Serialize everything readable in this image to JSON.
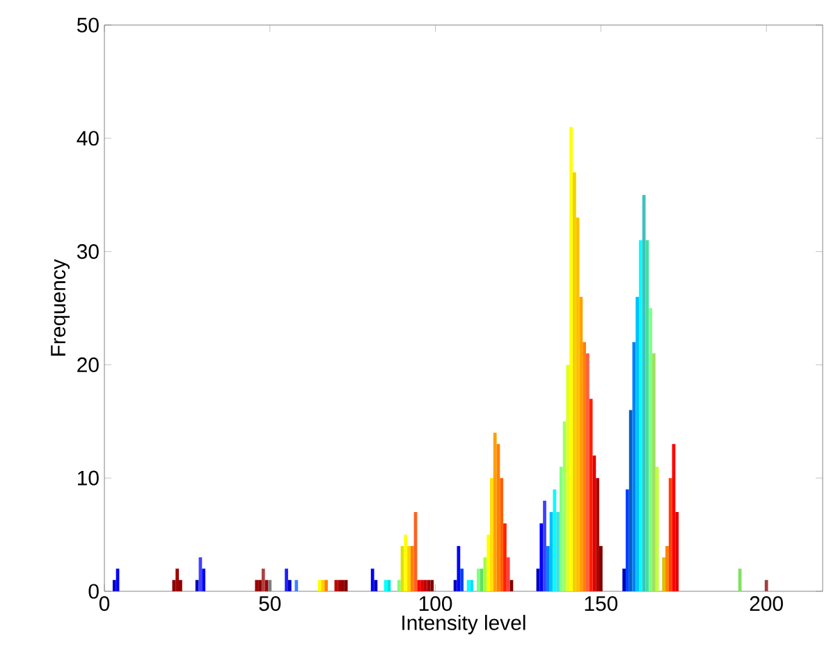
{
  "chart_data": {
    "type": "bar",
    "xlabel": "Intensity level",
    "ylabel": "Frequency",
    "xlim": [
      0,
      217
    ],
    "ylim": [
      0,
      50
    ],
    "xticks": [
      0,
      50,
      100,
      150,
      200
    ],
    "yticks": [
      0,
      10,
      20,
      30,
      40,
      50
    ],
    "x": [
      3,
      4,
      21,
      22,
      23,
      28,
      29,
      30,
      46,
      47,
      48,
      49,
      50,
      55,
      56,
      58,
      65,
      66,
      67,
      70,
      71,
      72,
      73,
      81,
      82,
      85,
      86,
      89,
      90,
      91,
      92,
      93,
      94,
      95,
      96,
      97,
      98,
      99,
      106,
      107,
      108,
      110,
      111,
      113,
      114,
      115,
      116,
      117,
      118,
      119,
      120,
      121,
      122,
      123,
      131,
      132,
      133,
      134,
      135,
      136,
      137,
      138,
      139,
      140,
      141,
      142,
      143,
      144,
      145,
      146,
      147,
      148,
      149,
      150,
      157,
      158,
      159,
      160,
      161,
      162,
      163,
      164,
      165,
      166,
      167,
      169,
      170,
      171,
      172,
      173,
      192,
      200
    ],
    "values": [
      1,
      2,
      1,
      2,
      1,
      1,
      3,
      2,
      1,
      1,
      2,
      1,
      1,
      2,
      1,
      1,
      1,
      1,
      1,
      1,
      1,
      1,
      1,
      2,
      1,
      1,
      1,
      1,
      4,
      5,
      4,
      4,
      7,
      1,
      1,
      1,
      1,
      1,
      1,
      4,
      2,
      1,
      1,
      2,
      2,
      3,
      5,
      10,
      14,
      13,
      10,
      6,
      3,
      1,
      2,
      6,
      8,
      4,
      7,
      9,
      7,
      11,
      15,
      20,
      41,
      37,
      33,
      26,
      22,
      21,
      17,
      12,
      10,
      4,
      2,
      9,
      16,
      22,
      26,
      31,
      35,
      31,
      25,
      21,
      11,
      3,
      4,
      10,
      13,
      7,
      2,
      1
    ],
    "colors": [
      "#0000c0",
      "#0000ff",
      "#8b0000",
      "#a00000",
      "#8b0000",
      "#0000c0",
      "#4040ff",
      "#0000ff",
      "#a00000",
      "#8b0000",
      "#b04040",
      "#a00000",
      "#808080",
      "#2020ff",
      "#0000c0",
      "#4080ff",
      "#ffff00",
      "#ffd000",
      "#ff8000",
      "#c00000",
      "#a00000",
      "#900000",
      "#800000",
      "#0000ff",
      "#0000c0",
      "#00ffff",
      "#00e0e0",
      "#80ff80",
      "#e0e000",
      "#ffff00",
      "#ffd000",
      "#ff8000",
      "#ff6020",
      "#ff0000",
      "#e00000",
      "#c00000",
      "#a00000",
      "#800000",
      "#0000c0",
      "#0000ff",
      "#0040ff",
      "#00ffff",
      "#00e0ff",
      "#80ff80",
      "#60e060",
      "#a0ff40",
      "#ffff00",
      "#ffe000",
      "#ffa000",
      "#ff8000",
      "#ff6000",
      "#ff2000",
      "#ff4040",
      "#800000",
      "#0000c0",
      "#0000ff",
      "#4040ff",
      "#0080ff",
      "#00c0ff",
      "#00ffff",
      "#40e0e0",
      "#80ff80",
      "#a0ff60",
      "#e0ff20",
      "#ffff00",
      "#f0d000",
      "#ffc000",
      "#ffa000",
      "#ff8000",
      "#ff6040",
      "#ff2000",
      "#e00000",
      "#b00000",
      "#800000",
      "#0000c0",
      "#0040ff",
      "#0060c0",
      "#0080ff",
      "#00c0ff",
      "#00ffff",
      "#40c0c0",
      "#40e0a0",
      "#80ff80",
      "#a0e060",
      "#c0ff40",
      "#e0c000",
      "#ff8000",
      "#ff4000",
      "#ff0000",
      "#e00000",
      "#80e060",
      "#a04040"
    ]
  }
}
